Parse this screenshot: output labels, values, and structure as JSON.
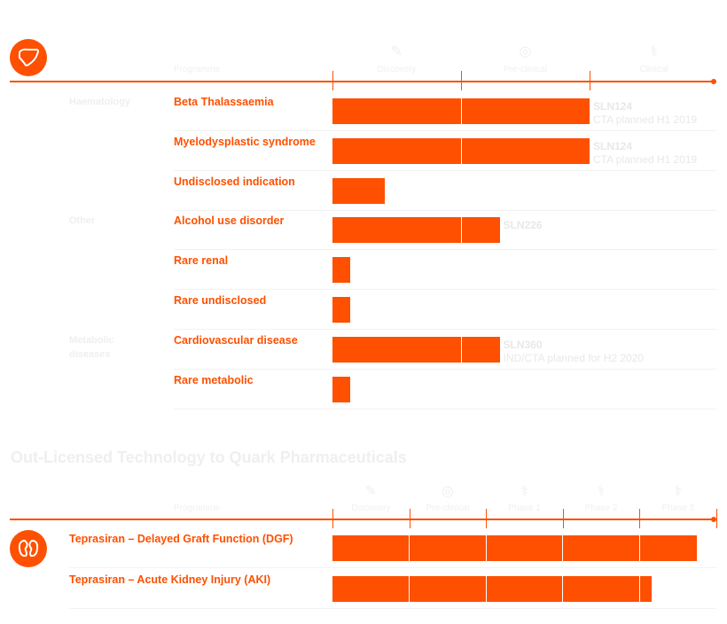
{
  "colors": {
    "accent": "#fe5000",
    "faint_text": "#efefef"
  },
  "chart_data": [
    {
      "type": "bar",
      "orientation": "horizontal",
      "icon": "liver-icon",
      "header": "Programme",
      "phases": [
        "Discovery",
        "Pre-clinical",
        "Clinical"
      ],
      "phase_icons": [
        "pipette-icon",
        "petri-dish-icon",
        "stethoscope-icon"
      ],
      "rows": [
        {
          "category": "Haematology",
          "label": "Beta Thalassaemia",
          "progress": 2.0,
          "product": "SLN124",
          "note": "CTA planned H1 2019"
        },
        {
          "category": "",
          "label": "Myelodysplastic syndrome",
          "progress": 2.0,
          "product": "SLN124",
          "note": "CTA planned H1 2019"
        },
        {
          "category": "",
          "label": "Undisclosed indication",
          "progress": 0.41,
          "product": "",
          "note": ""
        },
        {
          "category": "Other",
          "label": "Alcohol use disorder",
          "progress": 1.3,
          "product": "SLN226",
          "note": ""
        },
        {
          "category": "",
          "label": "Rare renal",
          "progress": 0.14,
          "product": "",
          "note": ""
        },
        {
          "category": "",
          "label": "Rare undisclosed",
          "progress": 0.14,
          "product": "",
          "note": ""
        },
        {
          "category": "Metabolic diseases",
          "label": "Cardiovascular disease",
          "progress": 1.3,
          "product": "SLN360",
          "note": "IND/CTA planned for H2 2020"
        },
        {
          "category": "",
          "label": "Rare metabolic",
          "progress": 0.14,
          "product": "",
          "note": ""
        }
      ]
    },
    {
      "type": "bar",
      "orientation": "horizontal",
      "title": "Out-Licensed Technology to Quark Pharmaceuticals",
      "icon": "kidney-icon",
      "header": "Programme",
      "phases": [
        "Discovery",
        "Pre-clinical",
        "Phase 1",
        "Phase 2",
        "Phase 3"
      ],
      "phase_icons": [
        "pipette-icon",
        "petri-dish-icon",
        "stethoscope-icon",
        "stethoscope-icon",
        "stethoscope-icon"
      ],
      "rows": [
        {
          "label": "Teprasiran – Delayed Graft Function (DGF)",
          "progress": 4.75
        },
        {
          "label": "Teprasiran – Acute Kidney Injury (AKI)",
          "progress": 4.16
        }
      ]
    }
  ]
}
